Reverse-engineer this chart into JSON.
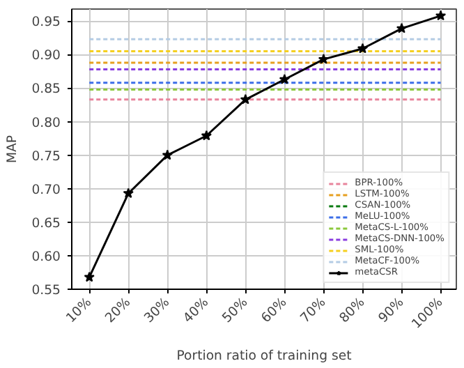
{
  "chart_data": {
    "type": "line",
    "xlabel": "Portion ratio of training set",
    "ylabel": "MAP",
    "categories": [
      "10%",
      "20%",
      "30%",
      "40%",
      "50%",
      "60%",
      "70%",
      "80%",
      "90%",
      "100%"
    ],
    "ylim": [
      0.55,
      0.968
    ],
    "yticks": [
      {
        "value": 0.55,
        "label": "0.55"
      },
      {
        "value": 0.6,
        "label": "0.60"
      },
      {
        "value": 0.65,
        "label": "0.65"
      },
      {
        "value": 0.7,
        "label": "0.70"
      },
      {
        "value": 0.75,
        "label": "0.75"
      },
      {
        "value": 0.8,
        "label": "0.80"
      },
      {
        "value": 0.85,
        "label": "0.85"
      },
      {
        "value": 0.9,
        "label": "0.90"
      },
      {
        "value": 0.95,
        "label": "0.95"
      }
    ],
    "grid": true,
    "legend": "bottom right",
    "series": [
      {
        "name": "BPR-100%",
        "color": "#e8849c",
        "line_style": "dashed",
        "marker": "none",
        "values": [
          0.833,
          0.833,
          0.833,
          0.833,
          0.833,
          0.833,
          0.833,
          0.833,
          0.833,
          0.833
        ]
      },
      {
        "name": "LSTM-100%",
        "color": "#e6a020",
        "line_style": "dashed",
        "marker": "none",
        "values": [
          0.888,
          0.888,
          0.888,
          0.888,
          0.888,
          0.888,
          0.888,
          0.888,
          0.888,
          0.888
        ]
      },
      {
        "name": "CSAN-100%",
        "color": "#0a7a10",
        "line_style": "dashed",
        "marker": "none",
        "values": [
          null,
          null,
          null,
          null,
          null,
          null,
          null,
          null,
          null,
          null
        ]
      },
      {
        "name": "MeLU-100%",
        "color": "#3c6ee8",
        "line_style": "dashed",
        "marker": "none",
        "values": [
          0.858,
          0.858,
          0.858,
          0.858,
          0.858,
          0.858,
          0.858,
          0.858,
          0.858,
          0.858
        ]
      },
      {
        "name": "MetaCS-L-100%",
        "color": "#8cc83c",
        "line_style": "dashed",
        "marker": "none",
        "values": [
          0.848,
          0.848,
          0.848,
          0.848,
          0.848,
          0.848,
          0.848,
          0.848,
          0.848,
          0.848
        ]
      },
      {
        "name": "MetaCS-DNN-100%",
        "color": "#8a3ce0",
        "line_style": "dashed",
        "marker": "none",
        "values": [
          0.878,
          0.878,
          0.878,
          0.878,
          0.878,
          0.878,
          0.878,
          0.878,
          0.878,
          0.878
        ]
      },
      {
        "name": "SML-100%",
        "color": "#f5d020",
        "line_style": "dashed",
        "marker": "none",
        "values": [
          0.905,
          0.905,
          0.905,
          0.905,
          0.905,
          0.905,
          0.905,
          0.905,
          0.905,
          0.905
        ]
      },
      {
        "name": "MetaCF-100%",
        "color": "#b4cce4",
        "line_style": "dashed",
        "marker": "none",
        "values": [
          0.923,
          0.923,
          0.923,
          0.923,
          0.923,
          0.923,
          0.923,
          0.923,
          0.923,
          0.923
        ]
      },
      {
        "name": "metaCSR",
        "color": "#000000",
        "line_style": "solid",
        "marker": "star",
        "values": [
          0.568,
          0.693,
          0.75,
          0.779,
          0.833,
          0.863,
          0.893,
          0.909,
          0.939,
          0.958
        ]
      }
    ]
  }
}
